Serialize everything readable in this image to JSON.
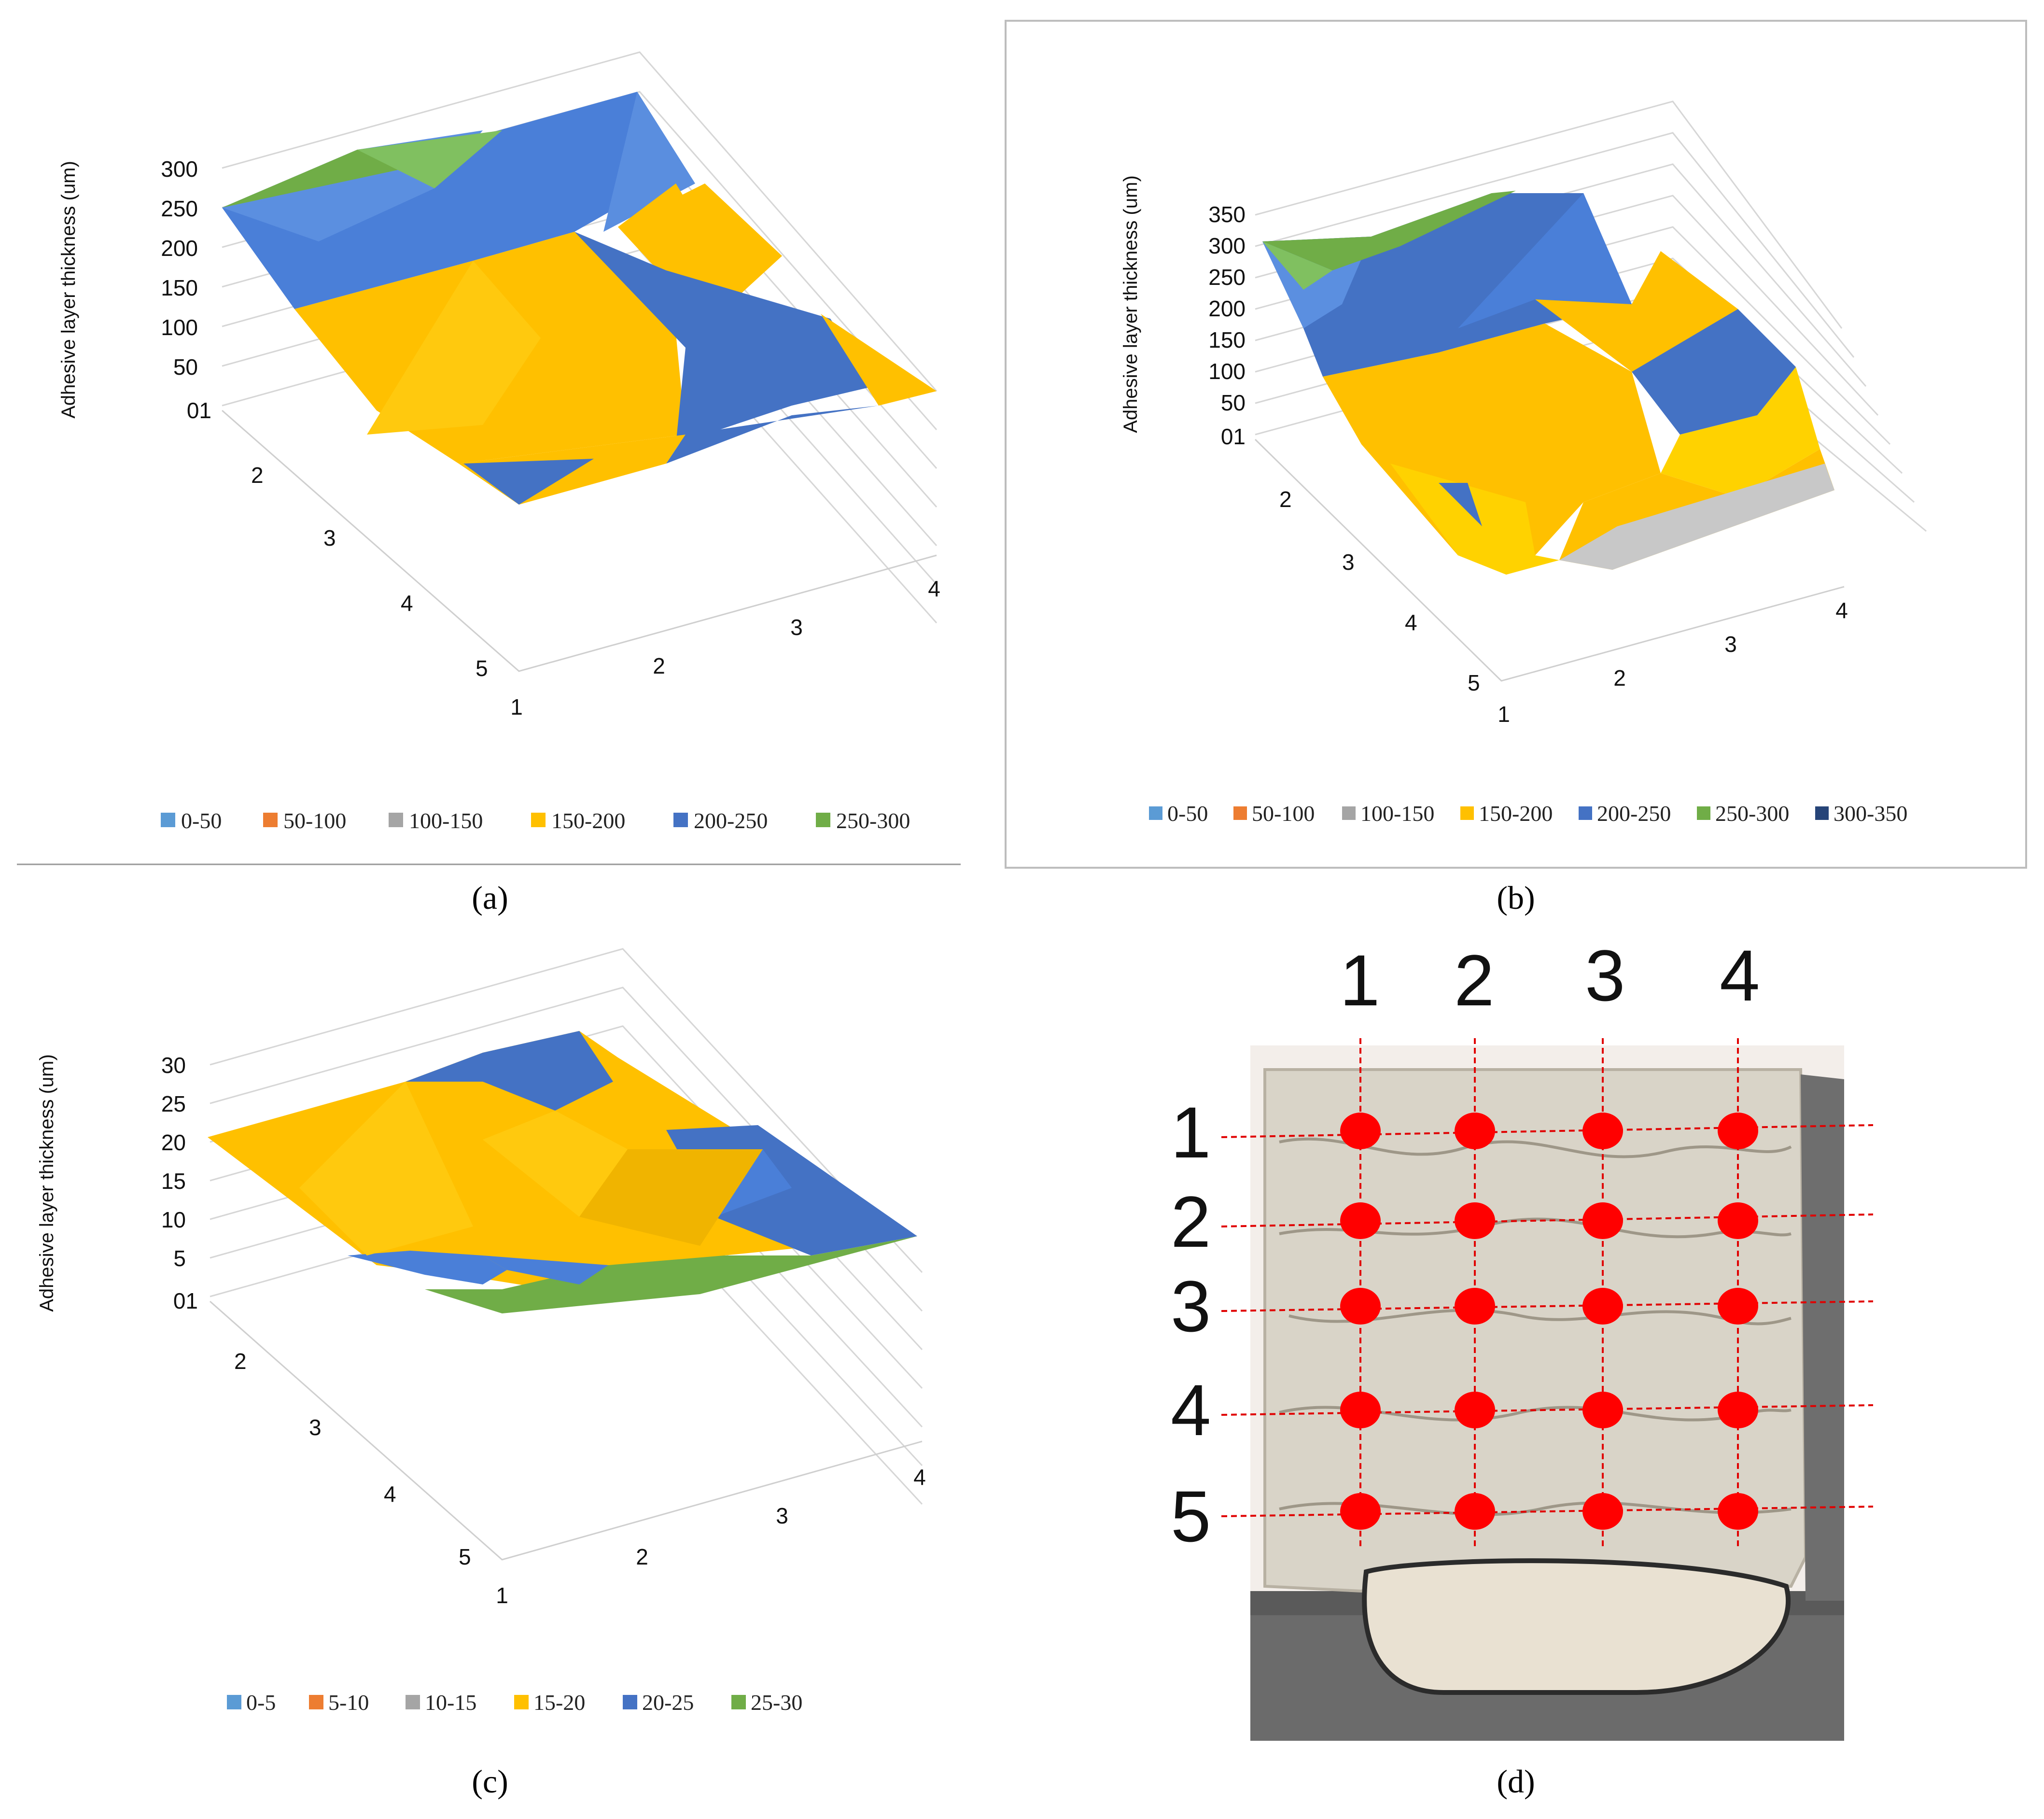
{
  "colors": {
    "light_blue": "#5b9bd5",
    "orange": "#ed7d31",
    "gray": "#a5a5a5",
    "yellow": "#ffc000",
    "blue": "#4472c4",
    "green": "#70ad47",
    "dark_blue": "#264478",
    "marker_red": "#ff0000"
  },
  "chart_data": [
    {
      "panel": "(a)",
      "type": "surface",
      "ylabel": "Adhesive layer thickness (um)",
      "z_ticks": [
        "01",
        "50",
        "100",
        "150",
        "200",
        "250",
        "300"
      ],
      "x_ticks": [
        "1",
        "2",
        "3",
        "4"
      ],
      "row_ticks": [
        "2",
        "3",
        "4",
        "5"
      ],
      "legend": [
        {
          "label": "0-50",
          "color": "#5b9bd5"
        },
        {
          "label": "50-100",
          "color": "#ed7d31"
        },
        {
          "label": "100-150",
          "color": "#a5a5a5"
        },
        {
          "label": "150-200",
          "color": "#ffc000"
        },
        {
          "label": "200-250",
          "color": "#4472c4"
        },
        {
          "label": "250-300",
          "color": "#70ad47"
        }
      ]
    },
    {
      "panel": "(b)",
      "type": "surface",
      "ylabel": "Adhesive layer thickness (um)",
      "z_ticks": [
        "01",
        "50",
        "100",
        "150",
        "200",
        "250",
        "300",
        "350"
      ],
      "x_ticks": [
        "1",
        "2",
        "3",
        "4"
      ],
      "row_ticks": [
        "2",
        "3",
        "4",
        "5"
      ],
      "legend": [
        {
          "label": "0-50",
          "color": "#5b9bd5"
        },
        {
          "label": "50-100",
          "color": "#ed7d31"
        },
        {
          "label": "100-150",
          "color": "#a5a5a5"
        },
        {
          "label": "150-200",
          "color": "#ffc000"
        },
        {
          "label": "200-250",
          "color": "#4472c4"
        },
        {
          "label": "250-300",
          "color": "#70ad47"
        },
        {
          "label": "300-350",
          "color": "#264478"
        }
      ]
    },
    {
      "panel": "(c)",
      "type": "surface",
      "ylabel": "Adhesive layer thickness (um)",
      "z_ticks": [
        "01",
        "5",
        "10",
        "15",
        "20",
        "25",
        "30"
      ],
      "x_ticks": [
        "1",
        "2",
        "3",
        "4"
      ],
      "row_ticks": [
        "2",
        "3",
        "4",
        "5"
      ],
      "legend": [
        {
          "label": "0-5",
          "color": "#5b9bd5"
        },
        {
          "label": "5-10",
          "color": "#ed7d31"
        },
        {
          "label": "10-15",
          "color": "#a5a5a5"
        },
        {
          "label": "15-20",
          "color": "#ffc000"
        },
        {
          "label": "20-25",
          "color": "#4472c4"
        },
        {
          "label": "25-30",
          "color": "#70ad47"
        }
      ]
    }
  ],
  "captions": {
    "a": "(a)",
    "b": "(b)",
    "c": "(c)",
    "d": "(d)"
  },
  "photo": {
    "columns": [
      "1",
      "2",
      "3",
      "4"
    ],
    "rows": [
      "1",
      "2",
      "3",
      "4",
      "5"
    ]
  }
}
